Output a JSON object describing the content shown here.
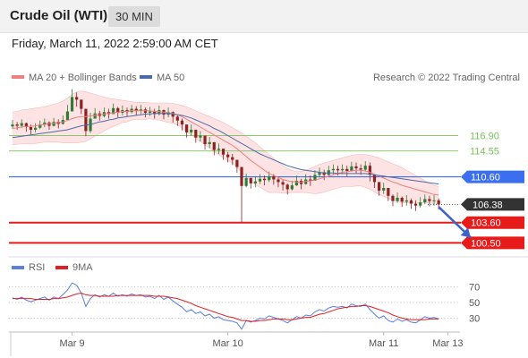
{
  "header": {
    "title": "Crude Oil (WTI)",
    "timeframe": "30 MIN",
    "datetime": "Friday, March 11, 2022 2:59:00 AM CET"
  },
  "legend": {
    "ma20_bb": "MA 20 + Bollinger Bands",
    "ma50": "MA 50",
    "copyright": "Research © 2022 Trading Central",
    "rsi": "RSI",
    "rsi_ma": "9MA"
  },
  "colors": {
    "ma20": "#f08080",
    "band_fill": "#fde3e3",
    "ma50": "#4a6ba8",
    "support": "#e81b1b",
    "pivot": "#3b6ff0",
    "resistance": "#79c25a",
    "candle_up": "#2e7d32",
    "candle_down": "#8b2323",
    "rsi": "#5a7fdc",
    "rsi_ma": "#e02020",
    "last_price": "#333333",
    "arrow": "#3b62c9"
  },
  "chart_data": {
    "type": "candlestick",
    "title": "Crude Oil (WTI)",
    "timeframe": "30 MIN",
    "ylim": [
      98.5,
      124.5
    ],
    "x_ticks": [
      {
        "label": "Mar 9",
        "index": 13
      },
      {
        "label": "Mar 10",
        "index": 47
      },
      {
        "label": "Mar 11",
        "index": 81
      },
      {
        "label": "Mar 13",
        "index": 95
      }
    ],
    "candles_close": [
      118.6,
      118.4,
      118.8,
      118.2,
      117.8,
      118.1,
      118.6,
      118.9,
      118.4,
      119.0,
      118.7,
      119.3,
      120.6,
      122.8,
      122.4,
      121.0,
      117.6,
      119.5,
      120.3,
      119.9,
      120.5,
      120.2,
      121.1,
      120.4,
      120.8,
      120.5,
      121.0,
      120.7,
      120.9,
      120.4,
      120.6,
      120.2,
      120.8,
      120.1,
      120.5,
      119.8,
      119.2,
      118.6,
      117.4,
      117.8,
      116.6,
      116.9,
      115.6,
      115.9,
      114.7,
      114.9,
      114.0,
      113.6,
      113.2,
      112.1,
      109.2,
      110.4,
      109.6,
      109.9,
      110.3,
      110.1,
      110.7,
      110.2,
      109.8,
      109.4,
      108.7,
      109.3,
      110.0,
      109.5,
      110.2,
      110.0,
      110.9,
      111.3,
      110.9,
      111.6,
      111.8,
      111.6,
      111.8,
      111.5,
      112.2,
      111.9,
      111.7,
      112.3,
      110.9,
      109.8,
      108.5,
      108.9,
      107.7,
      106.9,
      107.4,
      106.8,
      107.0,
      106.5,
      106.2,
      106.7,
      107.2,
      106.9,
      107.0,
      106.38
    ],
    "candles_high": [
      119.3,
      119.0,
      119.4,
      118.9,
      118.6,
      118.8,
      119.2,
      119.5,
      119.1,
      119.6,
      119.4,
      120.0,
      121.6,
      124.0,
      123.5,
      122.2,
      119.2,
      120.4,
      121.1,
      120.7,
      121.2,
      121.0,
      121.8,
      121.3,
      121.5,
      121.2,
      121.6,
      121.4,
      121.6,
      121.2,
      121.3,
      121.0,
      121.5,
      120.9,
      121.2,
      120.6,
      120.0,
      119.5,
      118.4,
      118.6,
      117.5,
      117.6,
      116.5,
      116.7,
      115.6,
      115.7,
      114.9,
      114.4,
      114.1,
      113.0,
      111.8,
      111.1,
      110.5,
      110.7,
      111.0,
      110.8,
      111.4,
      111.0,
      110.6,
      110.2,
      109.6,
      110.0,
      110.8,
      110.3,
      111.0,
      110.8,
      111.6,
      112.0,
      111.7,
      112.3,
      112.5,
      112.3,
      112.5,
      112.3,
      112.9,
      112.8,
      112.5,
      113.0,
      112.8,
      110.8,
      109.5,
      109.7,
      108.7,
      107.9,
      108.2,
      107.6,
      107.8,
      107.3,
      107.0,
      107.5,
      107.9,
      107.7,
      107.8,
      107.3
    ],
    "candles_low": [
      117.9,
      117.8,
      118.1,
      117.5,
      117.1,
      117.4,
      117.9,
      118.2,
      117.8,
      118.3,
      118.0,
      118.6,
      119.7,
      121.8,
      121.3,
      120.2,
      116.8,
      117.3,
      119.6,
      119.2,
      119.7,
      119.5,
      120.3,
      119.7,
      120.0,
      119.8,
      120.3,
      120.0,
      120.2,
      119.7,
      119.9,
      119.5,
      120.0,
      119.4,
      119.7,
      118.9,
      118.4,
      117.7,
      116.6,
      116.9,
      115.8,
      116.0,
      114.8,
      115.0,
      113.9,
      114.1,
      113.2,
      112.8,
      112.4,
      111.2,
      103.7,
      109.0,
      108.8,
      109.0,
      109.5,
      109.3,
      109.8,
      109.4,
      109.0,
      108.5,
      107.9,
      108.5,
      109.2,
      108.7,
      109.4,
      109.2,
      110.1,
      110.5,
      110.1,
      110.8,
      111.0,
      110.8,
      111.0,
      110.7,
      111.4,
      111.1,
      110.9,
      111.4,
      109.9,
      108.9,
      107.7,
      108.0,
      106.9,
      106.1,
      106.6,
      106.0,
      106.2,
      105.7,
      105.4,
      105.9,
      106.4,
      106.1,
      106.2,
      105.6
    ],
    "ma20": [
      118.0,
      118.1,
      118.2,
      118.3,
      118.3,
      118.4,
      118.5,
      118.6,
      118.7,
      118.8,
      118.9,
      119.0,
      119.2,
      119.5,
      119.7,
      119.8,
      119.8,
      119.9,
      120.0,
      120.1,
      120.2,
      120.3,
      120.4,
      120.5,
      120.6,
      120.6,
      120.7,
      120.7,
      120.7,
      120.7,
      120.7,
      120.6,
      120.6,
      120.5,
      120.4,
      120.3,
      120.1,
      119.8,
      119.4,
      119.0,
      118.6,
      118.2,
      117.8,
      117.4,
      117.0,
      116.6,
      116.2,
      115.8,
      115.4,
      114.9,
      114.3,
      113.7,
      113.1,
      112.6,
      112.1,
      111.6,
      111.1,
      110.8,
      110.5,
      110.2,
      110.0,
      109.9,
      109.8,
      109.8,
      109.9,
      110.0,
      110.1,
      110.3,
      110.5,
      110.7,
      110.9,
      111.1,
      111.3,
      111.4,
      111.5,
      111.6,
      111.6,
      111.5,
      111.3,
      111.0,
      110.7,
      110.4,
      110.1,
      109.8,
      109.6,
      109.3,
      109.1,
      108.9,
      108.7,
      108.5,
      108.3,
      108.1,
      107.9,
      107.8
    ],
    "band_upper": [
      120.5,
      120.6,
      120.8,
      120.9,
      121.0,
      121.1,
      121.2,
      121.3,
      121.5,
      121.7,
      121.9,
      122.2,
      122.6,
      123.2,
      123.6,
      123.7,
      123.6,
      123.4,
      123.2,
      123.0,
      122.8,
      122.6,
      122.5,
      122.4,
      122.3,
      122.2,
      122.1,
      122.0,
      122.0,
      122.0,
      121.9,
      121.9,
      121.9,
      121.9,
      121.9,
      121.8,
      121.7,
      121.5,
      121.3,
      121.0,
      120.7,
      120.4,
      120.1,
      119.8,
      119.5,
      119.2,
      118.9,
      118.5,
      118.1,
      117.7,
      117.3,
      116.8,
      116.3,
      115.8,
      115.2,
      114.6,
      114.0,
      113.4,
      112.8,
      112.3,
      111.9,
      111.6,
      111.4,
      111.4,
      111.6,
      111.9,
      112.2,
      112.5,
      112.7,
      112.9,
      113.1,
      113.3,
      113.5,
      113.7,
      113.9,
      114.0,
      114.0,
      114.0,
      113.9,
      113.7,
      113.5,
      113.2,
      112.9,
      112.6,
      112.3,
      112.0,
      111.6,
      111.2,
      110.8,
      110.4,
      110.0,
      109.6,
      109.3,
      109.1
    ],
    "band_lower": [
      115.5,
      115.6,
      115.6,
      115.7,
      115.6,
      115.7,
      115.8,
      115.9,
      115.9,
      115.9,
      115.9,
      115.8,
      115.8,
      115.8,
      115.8,
      115.9,
      116.0,
      116.4,
      116.8,
      117.2,
      117.6,
      118.0,
      118.3,
      118.6,
      118.9,
      119.0,
      119.3,
      119.4,
      119.4,
      119.4,
      119.5,
      119.3,
      119.3,
      119.1,
      118.9,
      118.8,
      118.5,
      118.1,
      117.5,
      117.0,
      116.5,
      116.0,
      115.5,
      115.0,
      114.5,
      114.0,
      113.5,
      113.1,
      112.7,
      112.1,
      111.3,
      110.6,
      109.9,
      109.4,
      109.0,
      108.6,
      108.2,
      108.2,
      108.2,
      108.1,
      108.1,
      108.2,
      108.2,
      108.2,
      108.2,
      108.1,
      108.0,
      108.1,
      108.3,
      108.5,
      108.7,
      108.9,
      109.1,
      109.1,
      109.1,
      109.2,
      109.2,
      109.0,
      108.7,
      108.3,
      107.9,
      107.6,
      107.3,
      107.0,
      106.9,
      106.6,
      106.6,
      106.6,
      106.6,
      106.6,
      106.6,
      106.6,
      106.5,
      106.5
    ],
    "ma50": [
      116.6,
      116.7,
      116.8,
      116.9,
      117.0,
      117.1,
      117.2,
      117.3,
      117.4,
      117.5,
      117.6,
      117.7,
      117.8,
      118.0,
      118.2,
      118.4,
      118.5,
      118.6,
      118.8,
      119.0,
      119.1,
      119.3,
      119.4,
      119.6,
      119.7,
      119.8,
      119.9,
      120.0,
      120.1,
      120.2,
      120.2,
      120.3,
      120.3,
      120.3,
      120.3,
      120.2,
      120.1,
      120.0,
      119.8,
      119.6,
      119.3,
      119.0,
      118.7,
      118.4,
      118.0,
      117.7,
      117.3,
      116.9,
      116.5,
      116.1,
      115.7,
      115.3,
      114.9,
      114.5,
      114.1,
      113.8,
      113.5,
      113.2,
      112.9,
      112.6,
      112.3,
      112.1,
      111.9,
      111.7,
      111.6,
      111.5,
      111.4,
      111.3,
      111.2,
      111.2,
      111.2,
      111.1,
      111.1,
      111.1,
      111.1,
      111.1,
      111.1,
      111.1,
      111.0,
      110.9,
      110.8,
      110.7,
      110.6,
      110.5,
      110.4,
      110.3,
      110.2,
      110.1,
      110.0,
      109.9,
      109.8,
      109.7,
      109.6,
      109.5
    ],
    "levels": [
      {
        "value": 116.9,
        "label": "116.90",
        "role": "resistance"
      },
      {
        "value": 114.55,
        "label": "114.55",
        "role": "resistance"
      },
      {
        "value": 110.6,
        "label": "110.60",
        "role": "pivot"
      },
      {
        "value": 106.38,
        "label": "106.38",
        "role": "last"
      },
      {
        "value": 103.6,
        "label": "103.60",
        "role": "support"
      },
      {
        "value": 100.5,
        "label": "100.50",
        "role": "support"
      }
    ],
    "arrow": {
      "from_index": 93,
      "from_value": 106.0,
      "to_index": 100,
      "to_value": 101.3
    },
    "rsi": {
      "ylim": [
        18,
        82
      ],
      "ticks": [
        70,
        50,
        30
      ],
      "rsi_values": [
        56,
        54,
        57,
        53,
        51,
        53,
        55,
        57,
        53,
        57,
        55,
        60,
        66,
        75,
        72,
        62,
        45,
        55,
        60,
        57,
        60,
        58,
        62,
        58,
        60,
        58,
        61,
        59,
        60,
        57,
        58,
        55,
        59,
        54,
        57,
        52,
        48,
        44,
        38,
        41,
        36,
        38,
        33,
        35,
        30,
        32,
        28,
        27,
        26,
        24,
        16,
        27,
        25,
        27,
        30,
        29,
        33,
        31,
        29,
        27,
        24,
        28,
        32,
        30,
        34,
        33,
        38,
        41,
        39,
        43,
        45,
        44,
        45,
        43,
        48,
        46,
        45,
        48,
        41,
        35,
        30,
        33,
        27,
        25,
        29,
        26,
        28,
        25,
        24,
        28,
        32,
        30,
        31,
        29
      ],
      "ma_values": [
        55,
        55,
        55,
        55,
        55,
        54,
        54,
        54,
        54,
        55,
        55,
        56,
        57,
        59,
        61,
        62,
        60,
        59,
        59,
        58,
        58,
        58,
        58,
        59,
        59,
        59,
        59,
        59,
        59,
        59,
        59,
        58,
        58,
        58,
        57,
        56,
        55,
        53,
        51,
        49,
        46,
        44,
        42,
        40,
        38,
        36,
        34,
        32,
        31,
        29,
        27,
        27,
        26,
        26,
        27,
        27,
        28,
        29,
        29,
        29,
        28,
        28,
        29,
        30,
        31,
        31,
        33,
        35,
        36,
        38,
        40,
        42,
        43,
        44,
        45,
        45,
        46,
        46,
        45,
        43,
        41,
        39,
        37,
        34,
        32,
        30,
        29,
        28,
        28,
        28,
        28,
        29,
        29,
        29
      ]
    }
  }
}
